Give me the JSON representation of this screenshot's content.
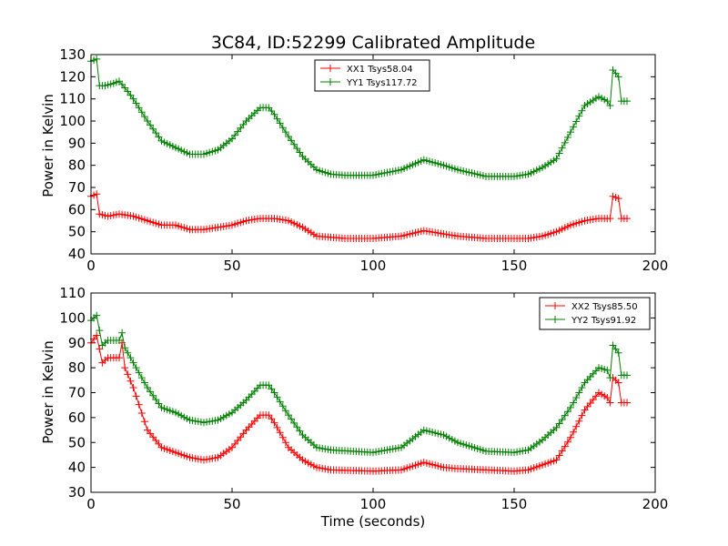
{
  "chart_data": [
    {
      "type": "line",
      "title": "3C84, ID:52299 Calibrated Amplitude",
      "xlabel": "",
      "ylabel": "Power in Kelvin",
      "xlim": [
        0,
        200
      ],
      "ylim": [
        40,
        130
      ],
      "xticks": [
        "0",
        "50",
        "100",
        "150",
        "200"
      ],
      "yticks": [
        "40",
        "50",
        "60",
        "70",
        "80",
        "90",
        "100",
        "110",
        "120",
        "130"
      ],
      "legend_position": "top-center",
      "series": [
        {
          "name": "XX1 Tsys58.04",
          "color": "#ff0000",
          "points": [
            [
              0,
              66
            ],
            [
              2,
              67
            ],
            [
              3,
              58
            ],
            [
              6,
              57
            ],
            [
              10,
              58
            ],
            [
              15,
              57
            ],
            [
              20,
              55
            ],
            [
              25,
              53
            ],
            [
              30,
              53
            ],
            [
              35,
              51
            ],
            [
              40,
              51
            ],
            [
              45,
              52
            ],
            [
              50,
              53
            ],
            [
              55,
              55
            ],
            [
              60,
              56
            ],
            [
              65,
              56
            ],
            [
              70,
              55
            ],
            [
              75,
              52
            ],
            [
              80,
              48
            ],
            [
              85,
              47.5
            ],
            [
              90,
              47
            ],
            [
              100,
              47
            ],
            [
              110,
              48
            ],
            [
              118,
              50.5
            ],
            [
              125,
              49
            ],
            [
              130,
              48
            ],
            [
              140,
              47
            ],
            [
              150,
              47
            ],
            [
              155,
              47
            ],
            [
              160,
              48
            ],
            [
              165,
              50
            ],
            [
              170,
              53
            ],
            [
              175,
              55
            ],
            [
              180,
              56
            ],
            [
              184,
              56
            ],
            [
              185,
              66
            ],
            [
              187,
              65
            ],
            [
              188,
              56
            ],
            [
              190,
              56
            ]
          ]
        },
        {
          "name": "YY1 Tsys117.72",
          "color": "#008000",
          "points": [
            [
              0,
              127
            ],
            [
              2,
              128
            ],
            [
              3,
              116
            ],
            [
              5,
              116
            ],
            [
              8,
              117
            ],
            [
              10,
              118
            ],
            [
              12,
              115
            ],
            [
              15,
              110
            ],
            [
              20,
              100
            ],
            [
              25,
              91
            ],
            [
              30,
              88
            ],
            [
              35,
              85
            ],
            [
              40,
              85
            ],
            [
              45,
              87
            ],
            [
              50,
              92
            ],
            [
              55,
              100
            ],
            [
              60,
              106
            ],
            [
              63,
              106
            ],
            [
              65,
              103
            ],
            [
              70,
              93
            ],
            [
              75,
              84
            ],
            [
              80,
              78
            ],
            [
              85,
              76
            ],
            [
              90,
              75.5
            ],
            [
              100,
              75.5
            ],
            [
              110,
              78
            ],
            [
              118,
              82.5
            ],
            [
              125,
              80
            ],
            [
              130,
              78
            ],
            [
              140,
              75
            ],
            [
              150,
              75
            ],
            [
              155,
              76
            ],
            [
              160,
              79
            ],
            [
              165,
              83
            ],
            [
              170,
              95
            ],
            [
              175,
              107
            ],
            [
              180,
              111
            ],
            [
              183,
              109
            ],
            [
              184,
              107
            ],
            [
              185,
              123
            ],
            [
              187,
              120
            ],
            [
              188,
              109
            ],
            [
              190,
              109
            ]
          ]
        }
      ]
    },
    {
      "type": "line",
      "title": "",
      "xlabel": "Time (seconds)",
      "ylabel": "Power in Kelvin",
      "xlim": [
        0,
        200
      ],
      "ylim": [
        30,
        110
      ],
      "xticks": [
        "0",
        "50",
        "100",
        "150",
        "200"
      ],
      "yticks": [
        "30",
        "40",
        "50",
        "60",
        "70",
        "80",
        "90",
        "100",
        "110"
      ],
      "legend_position": "top-right",
      "series": [
        {
          "name": "XX2 Tsys85.50",
          "color": "#ff0000",
          "points": [
            [
              0,
              90
            ],
            [
              2,
              93
            ],
            [
              4,
              82
            ],
            [
              6,
              84
            ],
            [
              10,
              84
            ],
            [
              11,
              90
            ],
            [
              12,
              80
            ],
            [
              15,
              72
            ],
            [
              20,
              55
            ],
            [
              25,
              48
            ],
            [
              30,
              46
            ],
            [
              35,
              44
            ],
            [
              40,
              43
            ],
            [
              45,
              44
            ],
            [
              50,
              48
            ],
            [
              55,
              55
            ],
            [
              60,
              61
            ],
            [
              63,
              61
            ],
            [
              65,
              58
            ],
            [
              70,
              48
            ],
            [
              75,
              43
            ],
            [
              80,
              40
            ],
            [
              85,
              39
            ],
            [
              100,
              38.5
            ],
            [
              110,
              39
            ],
            [
              118,
              42
            ],
            [
              125,
              40
            ],
            [
              130,
              39.5
            ],
            [
              140,
              39
            ],
            [
              150,
              38.5
            ],
            [
              155,
              39
            ],
            [
              160,
              41
            ],
            [
              165,
              43
            ],
            [
              170,
              52
            ],
            [
              175,
              63
            ],
            [
              180,
              70
            ],
            [
              183,
              68
            ],
            [
              184,
              66
            ],
            [
              185,
              76
            ],
            [
              187,
              74
            ],
            [
              188,
              66
            ],
            [
              190,
              66
            ]
          ]
        },
        {
          "name": "YY2 Tsys91.92",
          "color": "#008000",
          "points": [
            [
              0,
              99
            ],
            [
              2,
              101
            ],
            [
              4,
              89
            ],
            [
              6,
              91
            ],
            [
              10,
              91
            ],
            [
              11,
              94
            ],
            [
              12,
              88
            ],
            [
              15,
              82
            ],
            [
              20,
              72
            ],
            [
              25,
              64
            ],
            [
              30,
              62
            ],
            [
              35,
              59
            ],
            [
              40,
              58
            ],
            [
              45,
              59
            ],
            [
              50,
              62
            ],
            [
              55,
              67
            ],
            [
              60,
              73
            ],
            [
              63,
              73
            ],
            [
              65,
              70
            ],
            [
              70,
              61
            ],
            [
              75,
              53
            ],
            [
              80,
              48
            ],
            [
              85,
              47
            ],
            [
              100,
              46
            ],
            [
              110,
              48
            ],
            [
              118,
              55
            ],
            [
              125,
              53
            ],
            [
              130,
              50
            ],
            [
              140,
              46.5
            ],
            [
              150,
              46
            ],
            [
              155,
              47
            ],
            [
              160,
              51
            ],
            [
              165,
              56
            ],
            [
              170,
              64
            ],
            [
              175,
              74
            ],
            [
              180,
              80
            ],
            [
              183,
              79
            ],
            [
              184,
              76
            ],
            [
              185,
              89
            ],
            [
              187,
              86
            ],
            [
              188,
              77
            ],
            [
              190,
              77
            ]
          ]
        }
      ]
    }
  ]
}
